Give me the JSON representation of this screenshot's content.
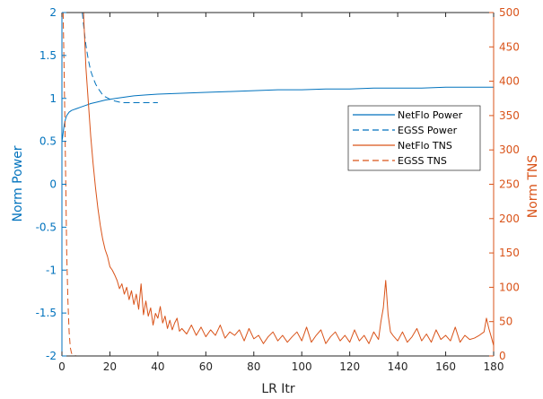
{
  "chart_data": {
    "type": "line",
    "xlabel": "LR Itr",
    "ylabel_left": "Norm Power",
    "ylabel_right": "Norm TNS",
    "xlim": [
      0,
      180
    ],
    "ylim_left": [
      -2,
      2
    ],
    "ylim_right": [
      0,
      500
    ],
    "x_ticks": [
      0,
      20,
      40,
      60,
      80,
      100,
      120,
      140,
      160,
      180
    ],
    "y_left_ticks": [
      -2,
      -1.5,
      -1,
      -0.5,
      0,
      0.5,
      1,
      1.5,
      2
    ],
    "y_right_ticks": [
      0,
      50,
      100,
      150,
      200,
      250,
      300,
      350,
      400,
      450,
      500
    ],
    "left_color": "#0072BD",
    "right_color": "#D95319",
    "grid": false,
    "legend_position": "center-right",
    "series": [
      {
        "name": "NetFlo Power",
        "axis": "left",
        "dash": "solid",
        "color": "#0072BD",
        "x": [
          0,
          0.3,
          0.6,
          1,
          1.5,
          2,
          3,
          4,
          5,
          6,
          8,
          10,
          12,
          15,
          18,
          20,
          25,
          30,
          35,
          40,
          50,
          60,
          70,
          80,
          90,
          100,
          110,
          120,
          130,
          140,
          150,
          160,
          170,
          180
        ],
        "y": [
          0.5,
          0.55,
          0.62,
          0.7,
          0.76,
          0.8,
          0.84,
          0.86,
          0.87,
          0.88,
          0.9,
          0.92,
          0.94,
          0.96,
          0.98,
          0.99,
          1.01,
          1.03,
          1.04,
          1.05,
          1.06,
          1.07,
          1.08,
          1.09,
          1.1,
          1.1,
          1.11,
          1.11,
          1.12,
          1.12,
          1.12,
          1.13,
          1.13,
          1.13
        ]
      },
      {
        "name": "EGSS Power",
        "axis": "left",
        "dash": "dashed",
        "color": "#0072BD",
        "x": [
          8.5,
          9,
          10,
          11,
          12,
          13,
          14,
          15,
          16,
          17,
          18,
          20,
          22,
          25,
          28,
          30,
          35,
          40
        ],
        "y": [
          2.0,
          1.86,
          1.62,
          1.45,
          1.32,
          1.24,
          1.17,
          1.12,
          1.08,
          1.04,
          1.02,
          0.99,
          0.97,
          0.95,
          0.95,
          0.95,
          0.95,
          0.95
        ]
      },
      {
        "name": "NetFlo TNS",
        "axis": "right",
        "dash": "solid",
        "color": "#D95319",
        "x": [
          0,
          1,
          2,
          3,
          4,
          5,
          6,
          7,
          8,
          9,
          10,
          11,
          12,
          13,
          14,
          15,
          16,
          17,
          18,
          19,
          20,
          21,
          22,
          23,
          24,
          25,
          26,
          27,
          28,
          29,
          30,
          31,
          32,
          33,
          34,
          35,
          36,
          37,
          38,
          39,
          40,
          41,
          42,
          43,
          44,
          45,
          46,
          47,
          48,
          49,
          50,
          52,
          54,
          56,
          58,
          60,
          62,
          64,
          66,
          68,
          70,
          72,
          74,
          76,
          78,
          80,
          82,
          84,
          86,
          88,
          90,
          92,
          94,
          96,
          98,
          100,
          102,
          104,
          106,
          108,
          110,
          112,
          114,
          116,
          118,
          120,
          122,
          124,
          126,
          128,
          130,
          132,
          133,
          134,
          135,
          136,
          137,
          138,
          140,
          142,
          144,
          146,
          148,
          150,
          152,
          154,
          156,
          158,
          160,
          162,
          164,
          166,
          168,
          170,
          172,
          174,
          176,
          177,
          178,
          179,
          180
        ],
        "y": [
          500,
          500,
          500,
          500,
          500,
          500,
          500,
          500,
          500,
          500,
          420,
          370,
          320,
          280,
          245,
          215,
          190,
          170,
          155,
          145,
          130,
          125,
          118,
          110,
          98,
          105,
          90,
          100,
          82,
          95,
          75,
          90,
          68,
          105,
          60,
          80,
          58,
          70,
          45,
          62,
          55,
          72,
          48,
          58,
          40,
          52,
          38,
          48,
          55,
          36,
          40,
          32,
          45,
          30,
          42,
          28,
          38,
          30,
          45,
          26,
          35,
          30,
          38,
          22,
          40,
          25,
          30,
          18,
          28,
          35,
          22,
          30,
          20,
          28,
          35,
          22,
          42,
          20,
          30,
          38,
          18,
          28,
          35,
          22,
          30,
          20,
          38,
          22,
          30,
          18,
          35,
          24,
          50,
          70,
          110,
          60,
          35,
          30,
          22,
          35,
          20,
          28,
          40,
          22,
          32,
          20,
          38,
          24,
          30,
          22,
          42,
          20,
          30,
          24,
          26,
          30,
          35,
          55,
          40,
          28,
          15
        ]
      },
      {
        "name": "EGSS TNS",
        "axis": "right",
        "dash": "dashed",
        "color": "#D95319",
        "x": [
          0.5,
          0.8,
          1.2,
          1.6,
          2,
          2.5,
          3,
          3.5,
          4,
          5,
          6,
          8,
          10,
          15,
          20,
          30,
          40
        ],
        "y": [
          500,
          440,
          350,
          250,
          150,
          80,
          35,
          12,
          4,
          1,
          0,
          0,
          0,
          0,
          0,
          0,
          0
        ]
      }
    ]
  }
}
